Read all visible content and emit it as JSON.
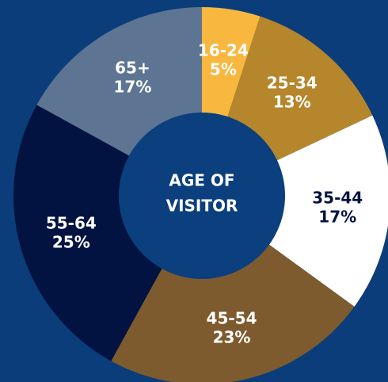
{
  "chart_data": {
    "type": "donut",
    "title_lines": [
      "AGE OF",
      "VISITOR"
    ],
    "categories": [
      "16-24",
      "25-34",
      "35-44",
      "45-54",
      "55-64",
      "65+"
    ],
    "values": [
      5,
      13,
      17,
      23,
      25,
      17
    ],
    "value_labels": [
      "5%",
      "13%",
      "17%",
      "23%",
      "25%",
      "17%"
    ],
    "colors": [
      "#f8b73f",
      "#b5862c",
      "#ffffff",
      "#7e5b2f",
      "#031341",
      "#5d7592"
    ]
  }
}
